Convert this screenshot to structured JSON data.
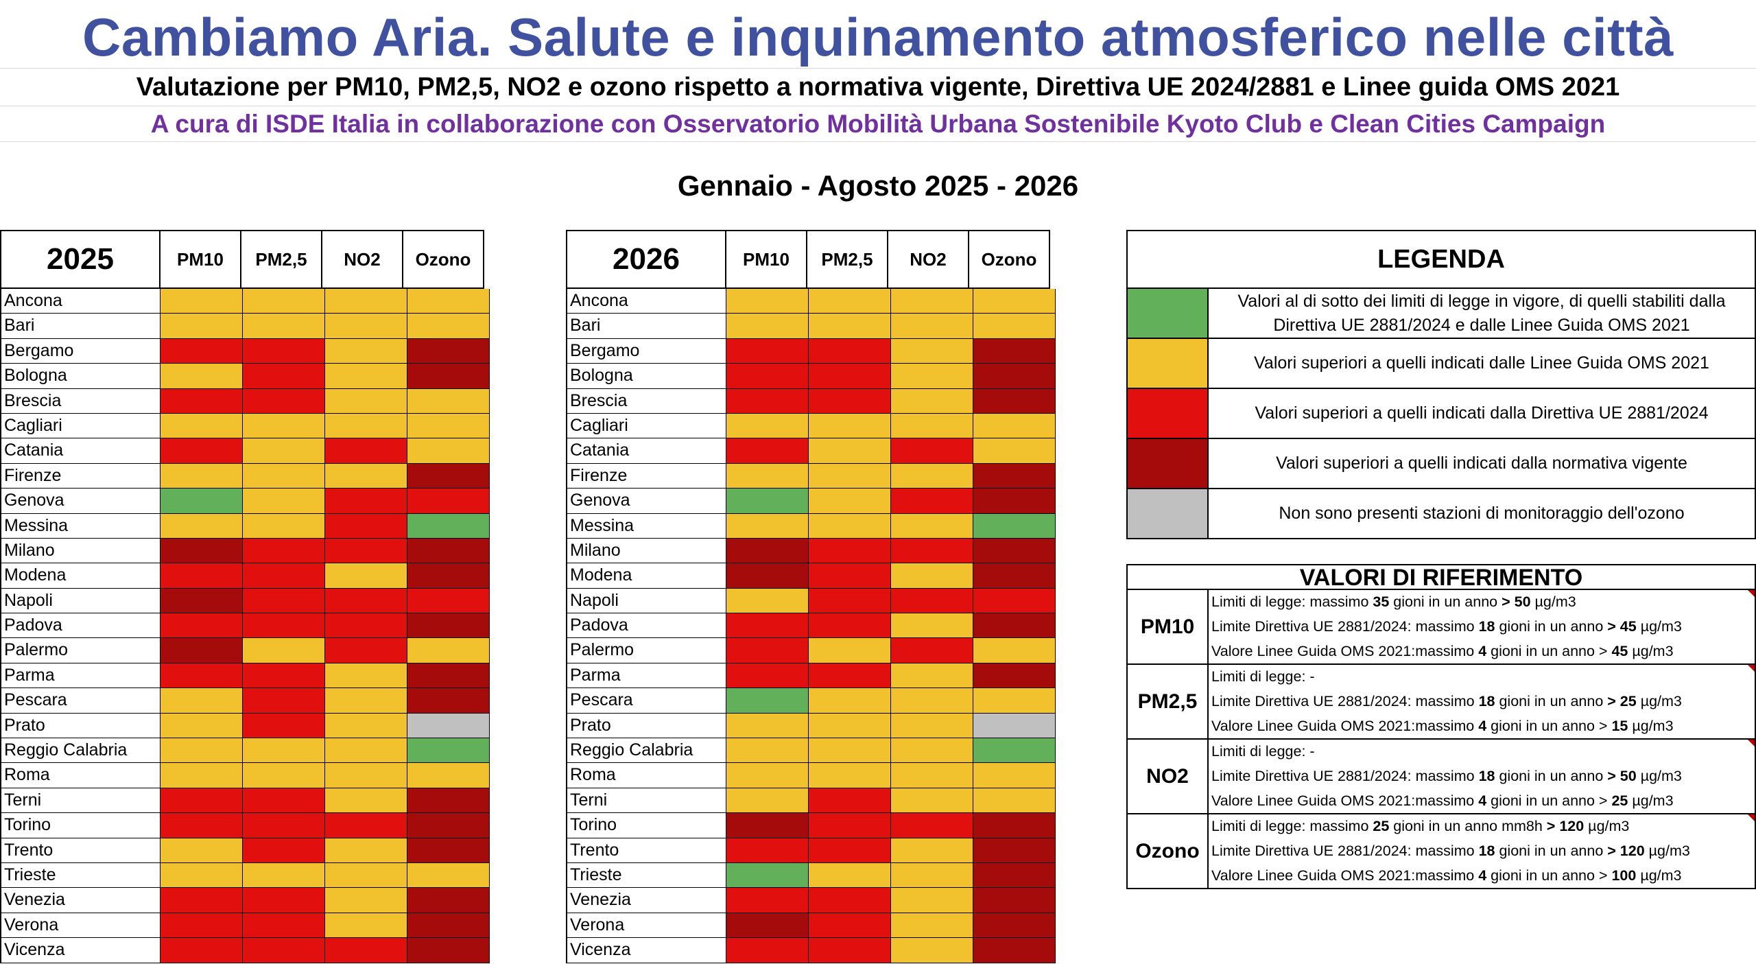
{
  "header": {
    "title": "Cambiamo Aria. Salute e inquinamento atmosferico nelle città",
    "subtitle": "Valutazione per PM10, PM2,5, NO2 e ozono rispetto a normativa vigente, Direttiva UE 2024/2881 e Linee guida OMS 2021",
    "credits": "A cura di ISDE Italia in collaborazione con Osservatorio Mobilità Urbana Sostenibile Kyoto Club e Clean Cities Campaign",
    "period": "Gennaio - Agosto 2025 - 2026"
  },
  "colors": {
    "G": "#63b05a",
    "Y": "#f2c12e",
    "R": "#e20f0f",
    "D": "#a50b0b",
    "X": "#c0c0c0"
  },
  "columns": [
    "PM10",
    "PM2,5",
    "NO2",
    "Ozono"
  ],
  "cities": [
    "Ancona",
    "Bari",
    "Bergamo",
    "Bologna",
    "Brescia",
    "Cagliari",
    "Catania",
    "Firenze",
    "Genova",
    "Messina",
    "Milano",
    "Modena",
    "Napoli",
    "Padova",
    "Palermo",
    "Parma",
    "Pescara",
    "Prato",
    "Reggio Calabria",
    "Roma",
    "Terni",
    "Torino",
    "Trento",
    "Trieste",
    "Venezia",
    "Verona",
    "Vicenza"
  ],
  "tables": [
    {
      "year": "2025",
      "rows": [
        "YYYY",
        "YYYY",
        "RRYD",
        "YRYD",
        "RRYY",
        "YYYY",
        "RYRY",
        "YYYD",
        "GYRR",
        "YYRG",
        "DRRD",
        "RRYD",
        "DRRR",
        "RRRD",
        "DYRY",
        "RRYD",
        "YRYD",
        "YRYX",
        "YYYG",
        "YYYY",
        "RRYD",
        "RRRD",
        "YRYD",
        "YYYY",
        "RRYD",
        "RRYD",
        "RRRD"
      ]
    },
    {
      "year": "2026",
      "rows": [
        "YYYY",
        "YYYY",
        "RRYD",
        "RRYD",
        "RRYD",
        "YYYY",
        "RYRY",
        "YYYD",
        "GYRD",
        "YYYG",
        "DRRD",
        "DRYD",
        "YRRR",
        "RRYD",
        "RYRY",
        "RRYD",
        "GYYY",
        "YYYX",
        "YYYG",
        "YYYY",
        "YRYY",
        "DRRD",
        "RRYD",
        "GYYD",
        "RRYD",
        "DRYD",
        "RRYD"
      ]
    }
  ],
  "legend": {
    "title": "LEGENDA",
    "items": [
      {
        "color": "G",
        "text": "Valori al di sotto dei limiti di legge in vigore, di quelli stabiliti dalla Direttiva UE 2881/2024 e dalle Linee Guida OMS 2021"
      },
      {
        "color": "Y",
        "text": "Valori superiori a quelli indicati dalle Linee Guida OMS 2021"
      },
      {
        "color": "R",
        "text": "Valori superiori a quelli indicati dalla Direttiva UE 2881/2024"
      },
      {
        "color": "D",
        "text": "Valori superiori a quelli indicati dalla normativa vigente"
      },
      {
        "color": "X",
        "text": "Non sono presenti stazioni di monitoraggio dell'ozono"
      }
    ]
  },
  "reference": {
    "title": "VALORI DI RIFERIMENTO",
    "rows": [
      {
        "pollutant": "PM10",
        "lines": [
          "Limiti di legge: massimo **35** gioni in un anno **> 50** µg/m3",
          "Limite Direttiva UE 2881/2024: massimo **18** gioni in un anno **> 45** µg/m3",
          "Valore Linee Guida OMS 2021:massimo **4** gioni in un anno > **45** µg/m3"
        ]
      },
      {
        "pollutant": "PM2,5",
        "lines": [
          "Limiti di legge: -",
          "Limite Direttiva UE 2881/2024: massimo **18** gioni in un anno **> 25** µg/m3",
          "Valore Linee Guida OMS 2021:massimo **4** gioni in un anno > **15** µg/m3"
        ]
      },
      {
        "pollutant": "NO2",
        "lines": [
          "Limiti di legge: -",
          "Limite Direttiva UE 2881/2024: massimo **18** gioni in un anno **> 50** µg/m3",
          "Valore Linee Guida OMS 2021:massimo **4** gioni in un anno > **25** µg/m3"
        ]
      },
      {
        "pollutant": "Ozono",
        "lines": [
          "Limiti di legge: massimo **25** gioni in un anno mm8h **> 120** µg/m3",
          "Limite Direttiva UE 2881/2024: massimo **18** gioni in un anno **> 120** µg/m3",
          "Valore Linee Guida OMS 2021:massimo **4** gioni in un anno > **100** µg/m3"
        ]
      }
    ]
  }
}
